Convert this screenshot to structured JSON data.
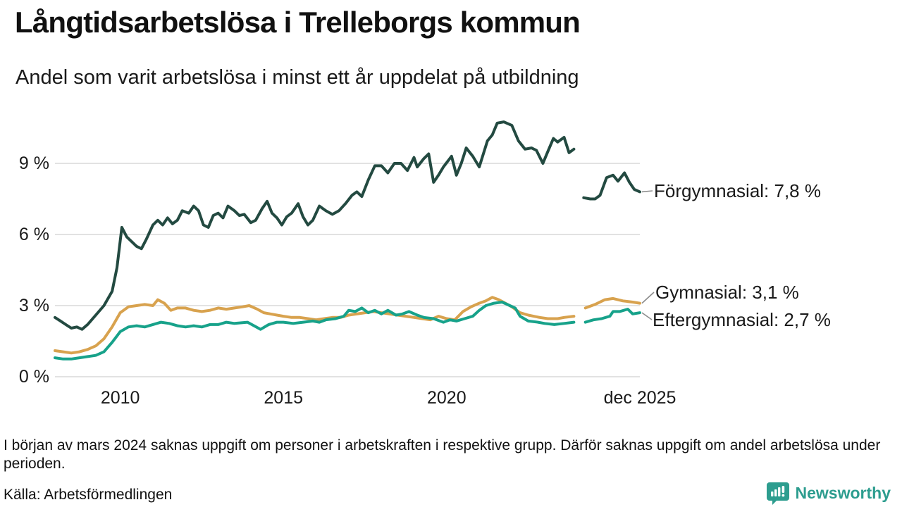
{
  "header": {
    "title": "Långtidsarbetslösa i Trelleborgs kommun",
    "subtitle": "Andel som varit arbetslösa i minst ett år uppdelat på utbildning"
  },
  "chart_data": {
    "type": "line",
    "title": "Långtidsarbetslösa i Trelleborgs kommun",
    "subtitle": "Andel som varit arbetslösa i minst ett år uppdelat på utbildning",
    "unit": "%",
    "grid": "horizontal",
    "gridline_color": "#e2e2e2",
    "x_axis": {
      "range": [
        2008.0,
        2025.92
      ],
      "ticks": [
        {
          "label": "2010",
          "year": 2010
        },
        {
          "label": "2015",
          "year": 2015
        },
        {
          "label": "2020",
          "year": 2020
        },
        {
          "label": "dec 2025",
          "year": 2025.92
        }
      ]
    },
    "y_axis": {
      "range": [
        0,
        11.2
      ],
      "ticks": [
        {
          "label": "0 %",
          "value": 0
        },
        {
          "label": "3 %",
          "value": 3
        },
        {
          "label": "6 %",
          "value": 6
        },
        {
          "label": "9 %",
          "value": 9
        }
      ]
    },
    "data_gap": {
      "from": 2023.95,
      "to": 2024.18
    },
    "series": [
      {
        "name": "Förgymnasial",
        "color": "#234a41",
        "end_label": "Förgymnasial: 7,8 %",
        "end_value_pct": 7.8,
        "points": [
          [
            2008.0,
            2.5
          ],
          [
            2008.17,
            2.35
          ],
          [
            2008.33,
            2.2
          ],
          [
            2008.5,
            2.05
          ],
          [
            2008.67,
            2.1
          ],
          [
            2008.83,
            2.0
          ],
          [
            2009.0,
            2.2
          ],
          [
            2009.25,
            2.6
          ],
          [
            2009.5,
            3.0
          ],
          [
            2009.75,
            3.6
          ],
          [
            2009.9,
            4.6
          ],
          [
            2010.05,
            6.3
          ],
          [
            2010.2,
            5.9
          ],
          [
            2010.35,
            5.7
          ],
          [
            2010.5,
            5.5
          ],
          [
            2010.65,
            5.4
          ],
          [
            2010.8,
            5.8
          ],
          [
            2011.0,
            6.4
          ],
          [
            2011.15,
            6.6
          ],
          [
            2011.3,
            6.4
          ],
          [
            2011.45,
            6.7
          ],
          [
            2011.6,
            6.45
          ],
          [
            2011.75,
            6.6
          ],
          [
            2011.9,
            7.0
          ],
          [
            2012.1,
            6.9
          ],
          [
            2012.25,
            7.2
          ],
          [
            2012.4,
            7.0
          ],
          [
            2012.55,
            6.4
          ],
          [
            2012.7,
            6.3
          ],
          [
            2012.85,
            6.8
          ],
          [
            2013.0,
            6.9
          ],
          [
            2013.15,
            6.7
          ],
          [
            2013.3,
            7.2
          ],
          [
            2013.5,
            7.0
          ],
          [
            2013.65,
            6.8
          ],
          [
            2013.8,
            6.85
          ],
          [
            2014.0,
            6.5
          ],
          [
            2014.15,
            6.6
          ],
          [
            2014.35,
            7.1
          ],
          [
            2014.5,
            7.4
          ],
          [
            2014.65,
            6.9
          ],
          [
            2014.8,
            6.7
          ],
          [
            2014.95,
            6.4
          ],
          [
            2015.1,
            6.75
          ],
          [
            2015.25,
            6.9
          ],
          [
            2015.45,
            7.3
          ],
          [
            2015.6,
            6.75
          ],
          [
            2015.75,
            6.4
          ],
          [
            2015.9,
            6.6
          ],
          [
            2016.1,
            7.2
          ],
          [
            2016.3,
            7.0
          ],
          [
            2016.5,
            6.85
          ],
          [
            2016.7,
            7.0
          ],
          [
            2016.9,
            7.3
          ],
          [
            2017.1,
            7.65
          ],
          [
            2017.25,
            7.8
          ],
          [
            2017.4,
            7.6
          ],
          [
            2017.6,
            8.3
          ],
          [
            2017.8,
            8.9
          ],
          [
            2018.0,
            8.9
          ],
          [
            2018.2,
            8.6
          ],
          [
            2018.4,
            9.0
          ],
          [
            2018.6,
            9.0
          ],
          [
            2018.8,
            8.7
          ],
          [
            2019.0,
            9.25
          ],
          [
            2019.1,
            8.85
          ],
          [
            2019.3,
            9.2
          ],
          [
            2019.45,
            9.4
          ],
          [
            2019.6,
            8.2
          ],
          [
            2019.75,
            8.5
          ],
          [
            2019.9,
            8.85
          ],
          [
            2020.15,
            9.3
          ],
          [
            2020.3,
            8.5
          ],
          [
            2020.45,
            9.0
          ],
          [
            2020.6,
            9.65
          ],
          [
            2020.8,
            9.3
          ],
          [
            2021.0,
            8.85
          ],
          [
            2021.25,
            9.95
          ],
          [
            2021.4,
            10.2
          ],
          [
            2021.55,
            10.7
          ],
          [
            2021.75,
            10.75
          ],
          [
            2022.0,
            10.6
          ],
          [
            2022.2,
            9.95
          ],
          [
            2022.4,
            9.6
          ],
          [
            2022.6,
            9.65
          ],
          [
            2022.75,
            9.55
          ],
          [
            2022.95,
            9.0
          ],
          [
            2023.1,
            9.5
          ],
          [
            2023.27,
            10.05
          ],
          [
            2023.4,
            9.9
          ],
          [
            2023.6,
            10.1
          ],
          [
            2023.75,
            9.45
          ],
          [
            2023.9,
            9.6
          ],
          [
            2024.0,
            null
          ],
          [
            2024.2,
            7.55
          ],
          [
            2024.4,
            7.5
          ],
          [
            2024.55,
            7.5
          ],
          [
            2024.7,
            7.65
          ],
          [
            2024.9,
            8.4
          ],
          [
            2025.0,
            8.45
          ],
          [
            2025.1,
            8.5
          ],
          [
            2025.25,
            8.25
          ],
          [
            2025.45,
            8.6
          ],
          [
            2025.6,
            8.2
          ],
          [
            2025.75,
            7.9
          ],
          [
            2025.92,
            7.8
          ]
        ]
      },
      {
        "name": "Gymnasial",
        "color": "#d8a24e",
        "end_label": "Gymnasial: 3,1 %",
        "end_value_pct": 3.1,
        "points": [
          [
            2008.0,
            1.1
          ],
          [
            2008.25,
            1.05
          ],
          [
            2008.5,
            1.0
          ],
          [
            2008.75,
            1.05
          ],
          [
            2009.0,
            1.15
          ],
          [
            2009.25,
            1.3
          ],
          [
            2009.5,
            1.6
          ],
          [
            2009.75,
            2.1
          ],
          [
            2010.0,
            2.7
          ],
          [
            2010.25,
            2.95
          ],
          [
            2010.5,
            3.0
          ],
          [
            2010.75,
            3.05
          ],
          [
            2011.0,
            3.0
          ],
          [
            2011.15,
            3.25
          ],
          [
            2011.35,
            3.1
          ],
          [
            2011.55,
            2.8
          ],
          [
            2011.75,
            2.9
          ],
          [
            2012.0,
            2.9
          ],
          [
            2012.25,
            2.8
          ],
          [
            2012.5,
            2.75
          ],
          [
            2012.75,
            2.8
          ],
          [
            2013.0,
            2.9
          ],
          [
            2013.25,
            2.85
          ],
          [
            2013.5,
            2.9
          ],
          [
            2013.75,
            2.95
          ],
          [
            2013.95,
            3.0
          ],
          [
            2014.2,
            2.85
          ],
          [
            2014.4,
            2.7
          ],
          [
            2014.6,
            2.65
          ],
          [
            2014.8,
            2.6
          ],
          [
            2015.0,
            2.55
          ],
          [
            2015.25,
            2.5
          ],
          [
            2015.5,
            2.5
          ],
          [
            2015.75,
            2.45
          ],
          [
            2016.0,
            2.4
          ],
          [
            2016.25,
            2.45
          ],
          [
            2016.5,
            2.5
          ],
          [
            2016.75,
            2.5
          ],
          [
            2017.0,
            2.6
          ],
          [
            2017.25,
            2.65
          ],
          [
            2017.5,
            2.7
          ],
          [
            2017.75,
            2.75
          ],
          [
            2018.0,
            2.7
          ],
          [
            2018.25,
            2.65
          ],
          [
            2018.5,
            2.6
          ],
          [
            2018.75,
            2.55
          ],
          [
            2019.0,
            2.5
          ],
          [
            2019.25,
            2.45
          ],
          [
            2019.5,
            2.4
          ],
          [
            2019.75,
            2.55
          ],
          [
            2020.0,
            2.45
          ],
          [
            2020.25,
            2.4
          ],
          [
            2020.5,
            2.75
          ],
          [
            2020.75,
            2.95
          ],
          [
            2021.0,
            3.1
          ],
          [
            2021.2,
            3.2
          ],
          [
            2021.4,
            3.35
          ],
          [
            2021.6,
            3.25
          ],
          [
            2021.8,
            3.1
          ],
          [
            2022.0,
            2.95
          ],
          [
            2022.25,
            2.7
          ],
          [
            2022.5,
            2.6
          ],
          [
            2022.85,
            2.5
          ],
          [
            2023.1,
            2.45
          ],
          [
            2023.4,
            2.45
          ],
          [
            2023.6,
            2.5
          ],
          [
            2023.9,
            2.55
          ],
          [
            2024.0,
            null
          ],
          [
            2024.25,
            2.9
          ],
          [
            2024.55,
            3.05
          ],
          [
            2024.85,
            3.25
          ],
          [
            2025.1,
            3.3
          ],
          [
            2025.4,
            3.2
          ],
          [
            2025.7,
            3.15
          ],
          [
            2025.92,
            3.1
          ]
        ]
      },
      {
        "name": "Eftergymnasial",
        "color": "#17a28a",
        "end_label": "Eftergymnasial: 2,7 %",
        "end_value_pct": 2.7,
        "points": [
          [
            2008.0,
            0.8
          ],
          [
            2008.25,
            0.75
          ],
          [
            2008.5,
            0.75
          ],
          [
            2008.75,
            0.8
          ],
          [
            2009.0,
            0.85
          ],
          [
            2009.25,
            0.9
          ],
          [
            2009.5,
            1.05
          ],
          [
            2009.75,
            1.45
          ],
          [
            2010.0,
            1.9
          ],
          [
            2010.25,
            2.1
          ],
          [
            2010.5,
            2.15
          ],
          [
            2010.75,
            2.1
          ],
          [
            2011.0,
            2.2
          ],
          [
            2011.25,
            2.3
          ],
          [
            2011.5,
            2.25
          ],
          [
            2011.75,
            2.15
          ],
          [
            2012.0,
            2.1
          ],
          [
            2012.25,
            2.15
          ],
          [
            2012.5,
            2.1
          ],
          [
            2012.75,
            2.2
          ],
          [
            2013.0,
            2.2
          ],
          [
            2013.25,
            2.3
          ],
          [
            2013.5,
            2.25
          ],
          [
            2013.9,
            2.3
          ],
          [
            2014.1,
            2.15
          ],
          [
            2014.3,
            2.0
          ],
          [
            2014.55,
            2.2
          ],
          [
            2014.8,
            2.3
          ],
          [
            2015.0,
            2.3
          ],
          [
            2015.3,
            2.25
          ],
          [
            2015.6,
            2.3
          ],
          [
            2015.9,
            2.35
          ],
          [
            2016.1,
            2.3
          ],
          [
            2016.3,
            2.4
          ],
          [
            2016.6,
            2.45
          ],
          [
            2016.85,
            2.55
          ],
          [
            2017.0,
            2.8
          ],
          [
            2017.2,
            2.75
          ],
          [
            2017.4,
            2.9
          ],
          [
            2017.6,
            2.7
          ],
          [
            2017.8,
            2.8
          ],
          [
            2018.0,
            2.65
          ],
          [
            2018.2,
            2.8
          ],
          [
            2018.45,
            2.6
          ],
          [
            2018.65,
            2.65
          ],
          [
            2018.85,
            2.75
          ],
          [
            2019.1,
            2.6
          ],
          [
            2019.3,
            2.5
          ],
          [
            2019.6,
            2.45
          ],
          [
            2019.9,
            2.3
          ],
          [
            2020.1,
            2.4
          ],
          [
            2020.3,
            2.35
          ],
          [
            2020.55,
            2.45
          ],
          [
            2020.8,
            2.55
          ],
          [
            2021.0,
            2.8
          ],
          [
            2021.2,
            3.0
          ],
          [
            2021.45,
            3.1
          ],
          [
            2021.7,
            3.15
          ],
          [
            2022.1,
            2.9
          ],
          [
            2022.25,
            2.55
          ],
          [
            2022.5,
            2.35
          ],
          [
            2022.8,
            2.3
          ],
          [
            2023.0,
            2.25
          ],
          [
            2023.3,
            2.2
          ],
          [
            2023.6,
            2.25
          ],
          [
            2023.9,
            2.3
          ],
          [
            2024.0,
            null
          ],
          [
            2024.25,
            2.3
          ],
          [
            2024.5,
            2.4
          ],
          [
            2024.75,
            2.45
          ],
          [
            2025.0,
            2.55
          ],
          [
            2025.1,
            2.75
          ],
          [
            2025.3,
            2.75
          ],
          [
            2025.55,
            2.85
          ],
          [
            2025.7,
            2.65
          ],
          [
            2025.92,
            2.7
          ]
        ]
      }
    ]
  },
  "footnote": "I början av mars 2024 saknas uppgift om personer i arbetskraften i respektive grupp. Därför saknas uppgift om andel arbetslösa under perioden.",
  "source": "Källa: Arbetsförmedlingen",
  "branding": {
    "name": "Newsworthy",
    "color": "#2d9d8f"
  }
}
